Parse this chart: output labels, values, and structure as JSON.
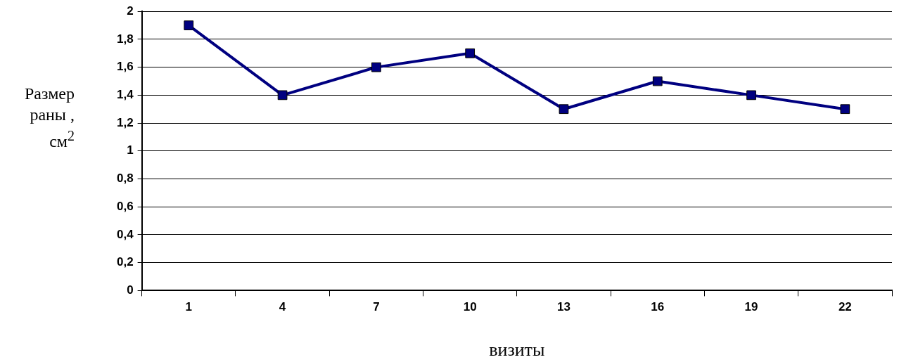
{
  "chart_data": {
    "type": "line",
    "xlabel": "визиты",
    "ylabel": "Размер раны , см$^{2}$",
    "categories": [
      "1",
      "4",
      "7",
      "10",
      "13",
      "16",
      "19",
      "22"
    ],
    "series": [
      {
        "color": "#000080",
        "values": [
          1.9,
          1.4,
          1.6,
          1.7,
          1.3,
          1.5,
          1.4,
          1.3
        ]
      }
    ],
    "ylim": [
      0,
      2
    ],
    "yticks": [
      {
        "value": 0,
        "label": "0"
      },
      {
        "value": 0.2,
        "label": "0,2"
      },
      {
        "value": 0.4,
        "label": "0,4"
      },
      {
        "value": 0.6,
        "label": "0,6"
      },
      {
        "value": 0.8,
        "label": "0,8"
      },
      {
        "value": 1,
        "label": "1"
      },
      {
        "value": 1.2,
        "label": "1,2"
      },
      {
        "value": 1.4,
        "label": "1,4"
      },
      {
        "value": 1.6,
        "label": "1,6"
      },
      {
        "value": 1.8,
        "label": "1,8"
      },
      {
        "value": 2,
        "label": "2"
      }
    ],
    "grid": "y",
    "legend": false,
    "marker": "square",
    "line_style": "solid"
  }
}
